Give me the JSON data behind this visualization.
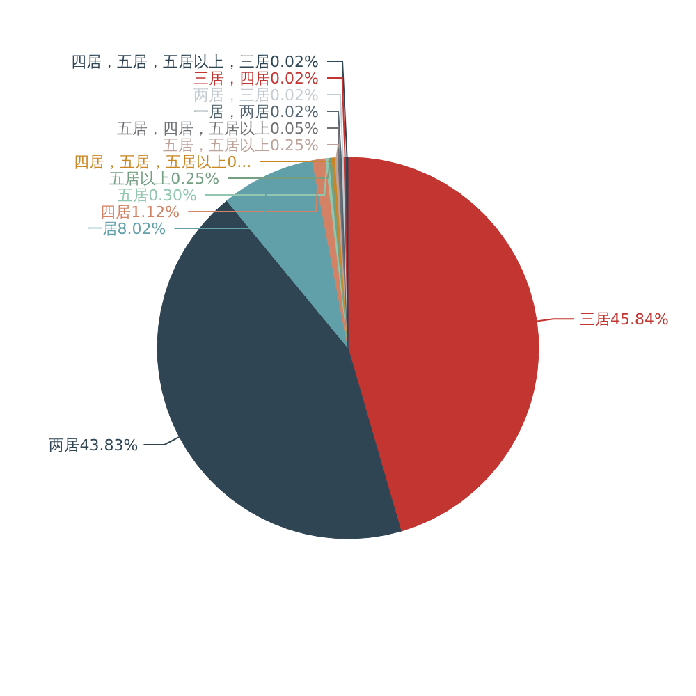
{
  "chart_data": {
    "type": "pie",
    "categories": [
      "三居",
      "两居",
      "一居",
      "四居",
      "五居",
      "五居以上",
      "四居，五居，五居以上",
      "五居，五居以上",
      "五居，四居，五居以上",
      "一居，两居",
      "两居，三居",
      "三居，四居",
      "四居，五居，五居以上，三居"
    ],
    "values": [
      45.84,
      43.83,
      8.02,
      1.12,
      0.3,
      0.25,
      0.26,
      0.25,
      0.05,
      0.02,
      0.02,
      0.02,
      0.02
    ],
    "value_labels": [
      "45.84%",
      "43.83%",
      "8.02%",
      "1.12%",
      "0.30%",
      "0.25%",
      "0...",
      "0.25%",
      "0.05%",
      "0.02%",
      "0.02%",
      "0.02%",
      "0.02%"
    ],
    "colors": [
      "#c23531",
      "#2f4554",
      "#61a0a8",
      "#d48265",
      "#91c7ae",
      "#749f83",
      "#ca8622",
      "#bda29a",
      "#6e7074",
      "#546570",
      "#c4ccd3",
      "#c23531",
      "#2f4554"
    ]
  }
}
